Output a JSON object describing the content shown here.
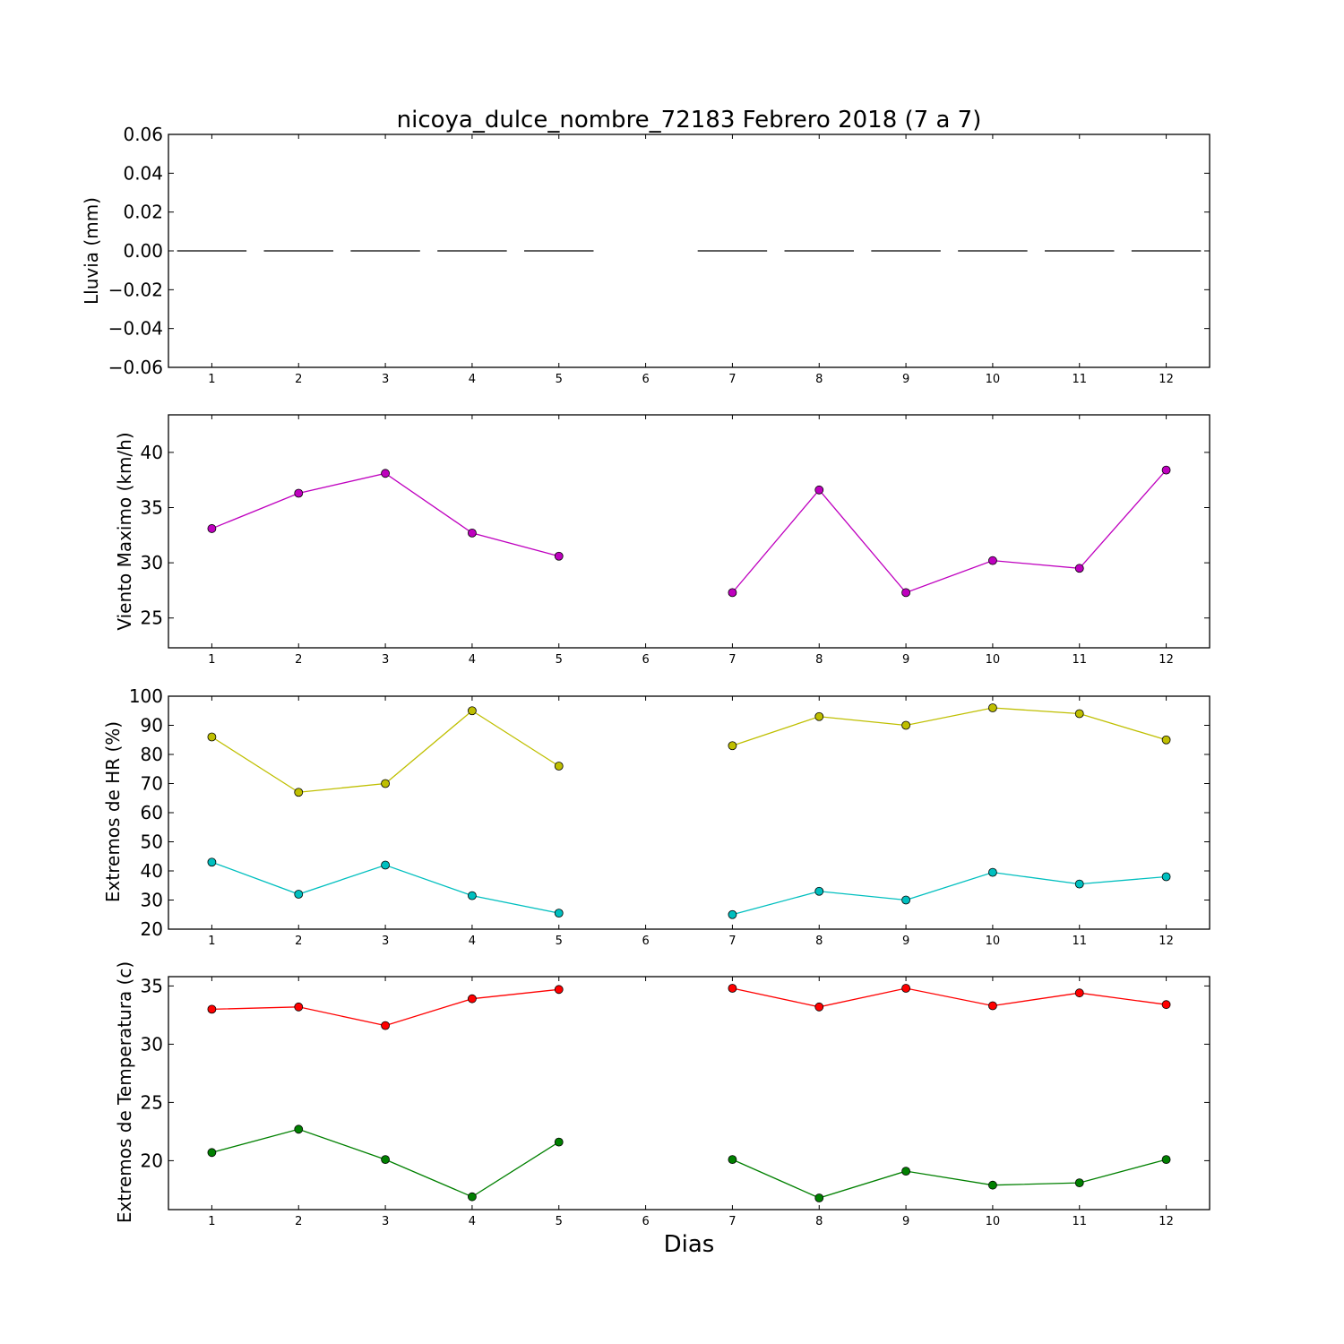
{
  "chart_data": [
    {
      "type": "bar",
      "title": "nicoya_dulce_nombre_72183 Febrero 2018  (7 a 7)",
      "ylabel": "Lluvia (mm)",
      "xlabel": "",
      "categories": [
        "1",
        "2",
        "3",
        "4",
        "5",
        "6",
        "7",
        "8",
        "9",
        "10",
        "11",
        "12"
      ],
      "values": [
        0,
        0,
        0,
        0,
        0,
        null,
        0,
        0,
        0,
        0,
        0,
        0
      ],
      "xlim": [
        0.5,
        12.5
      ],
      "ylim": [
        -0.06,
        0.06
      ],
      "yticks": [
        "0.06",
        "0.04",
        "0.02",
        "0.00",
        "−0.02",
        "−0.04",
        "−0.06"
      ],
      "ytick_values": [
        0.06,
        0.04,
        0.02,
        0.0,
        -0.02,
        -0.04,
        -0.06
      ],
      "color": "#000000"
    },
    {
      "type": "line",
      "title": "",
      "ylabel": "Viento Maximo (km/h)",
      "xlabel": "",
      "x": [
        1,
        2,
        3,
        4,
        5,
        6,
        7,
        8,
        9,
        10,
        11,
        12
      ],
      "series": [
        {
          "values": [
            33.1,
            36.3,
            38.1,
            32.7,
            30.6,
            null,
            27.3,
            36.6,
            27.3,
            30.2,
            29.5,
            38.4
          ],
          "color": "#bf00bf"
        }
      ],
      "xlim": [
        0.5,
        12.5
      ],
      "ylim": [
        22.3,
        43.4
      ],
      "yticks": [
        "40",
        "35",
        "30",
        "25"
      ],
      "ytick_values": [
        40,
        35,
        30,
        25
      ]
    },
    {
      "type": "line",
      "title": "",
      "ylabel": "Extremos de HR (%)",
      "xlabel": "",
      "x": [
        1,
        2,
        3,
        4,
        5,
        6,
        7,
        8,
        9,
        10,
        11,
        12
      ],
      "series": [
        {
          "values": [
            86,
            67,
            70,
            95,
            76,
            null,
            83,
            93,
            90,
            96,
            94,
            85
          ],
          "color": "#bfbf00"
        },
        {
          "values": [
            43,
            32,
            42,
            31.5,
            25.5,
            null,
            25,
            33,
            30,
            39.5,
            35.5,
            38
          ],
          "color": "#00bfbf"
        }
      ],
      "xlim": [
        0.5,
        12.5
      ],
      "ylim": [
        20,
        100
      ],
      "yticks": [
        "100",
        "90",
        "80",
        "70",
        "60",
        "50",
        "40",
        "30",
        "20"
      ],
      "ytick_values": [
        100,
        90,
        80,
        70,
        60,
        50,
        40,
        30,
        20
      ]
    },
    {
      "type": "line",
      "title": "",
      "ylabel": "Extremos de Temperatura (c)",
      "xlabel": "Dias",
      "x": [
        1,
        2,
        3,
        4,
        5,
        6,
        7,
        8,
        9,
        10,
        11,
        12
      ],
      "series": [
        {
          "values": [
            33.0,
            33.2,
            31.6,
            33.9,
            34.7,
            null,
            34.8,
            33.2,
            34.8,
            33.3,
            34.4,
            33.4
          ],
          "color": "#ff0000"
        },
        {
          "values": [
            20.7,
            22.7,
            20.1,
            16.9,
            21.6,
            null,
            20.1,
            16.8,
            19.1,
            17.9,
            18.1,
            20.1
          ],
          "color": "#008000"
        }
      ],
      "xlim": [
        0.5,
        12.5
      ],
      "ylim": [
        15.8,
        35.8
      ],
      "yticks": [
        "35",
        "30",
        "25",
        "20"
      ],
      "ytick_values": [
        35,
        30,
        25,
        20
      ]
    }
  ]
}
